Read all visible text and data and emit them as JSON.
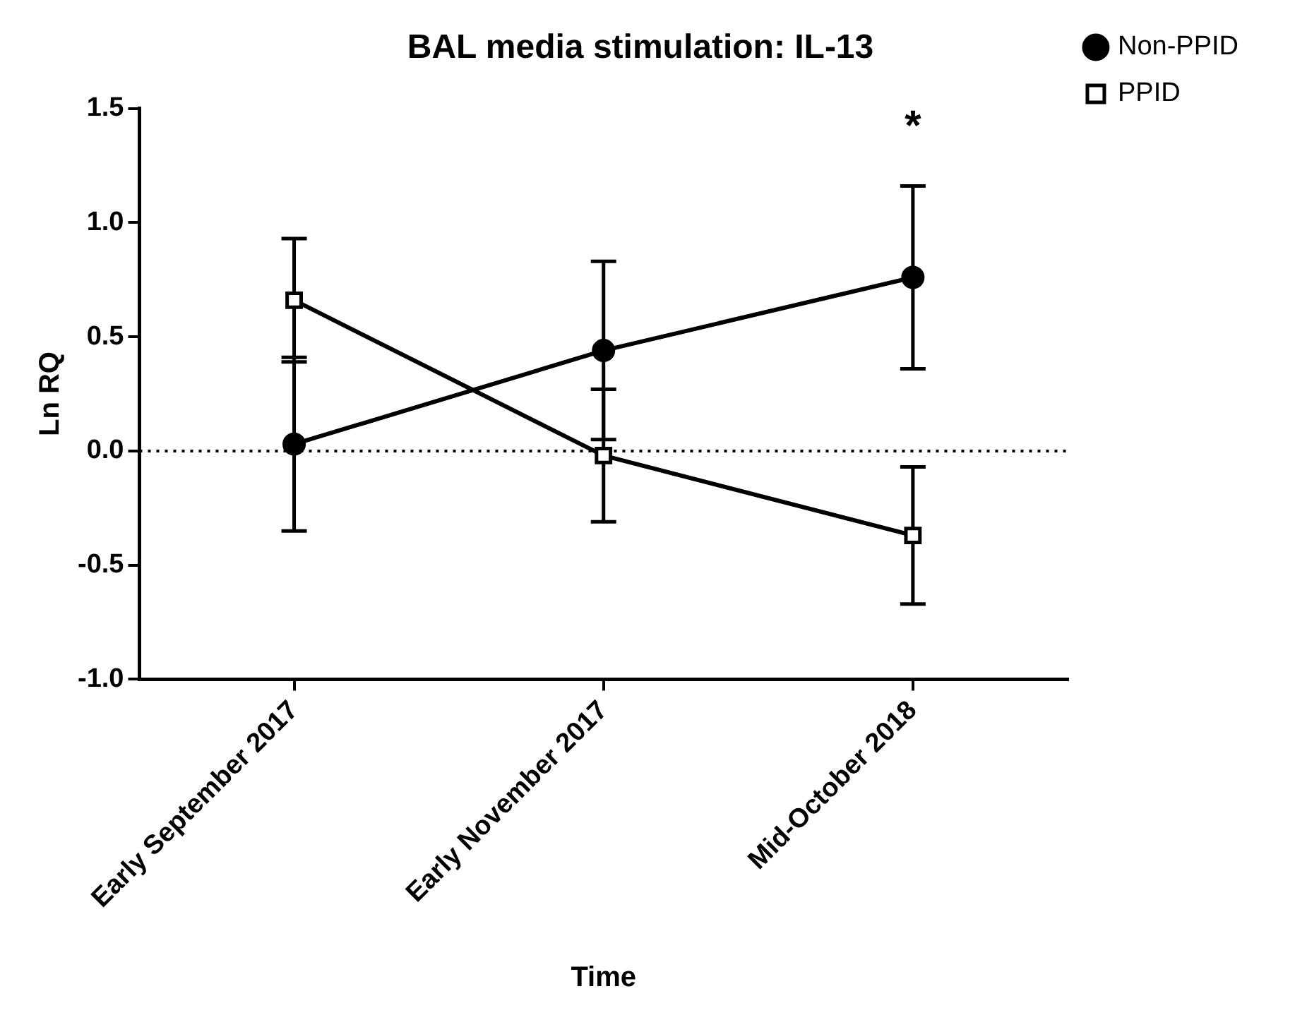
{
  "chart_data": {
    "type": "line",
    "title": "BAL media stimulation: IL-13",
    "xlabel": "Time",
    "ylabel": "Ln RQ",
    "categories": [
      "Early September 2017",
      "Early November 2017",
      "Mid-October 2018"
    ],
    "series": [
      {
        "name": "Non-PPID",
        "color": "#000000",
        "marker": "circle",
        "values": [
          0.03,
          0.44,
          0.76
        ],
        "errors": [
          0.38,
          0.39,
          0.4
        ]
      },
      {
        "name": "PPID",
        "color": "#000000",
        "marker": "square",
        "values": [
          0.66,
          -0.02,
          -0.37
        ],
        "errors": [
          0.27,
          0.29,
          0.3
        ]
      }
    ],
    "ylim": [
      -1,
      1.5
    ],
    "yticks": [
      {
        "value": -1,
        "label": "-1.0"
      },
      -0.5,
      {
        "value": 0,
        "label": "0.0"
      },
      0.5,
      {
        "value": 1,
        "label": "1.0"
      },
      1.5
    ],
    "ref_lines": [
      {
        "axis": "y",
        "value": 0,
        "line_style": "dotted",
        "color": "#000000"
      }
    ],
    "annotations": [
      "*"
    ],
    "legend": "top right",
    "grid": false,
    "line_style": "solid"
  }
}
